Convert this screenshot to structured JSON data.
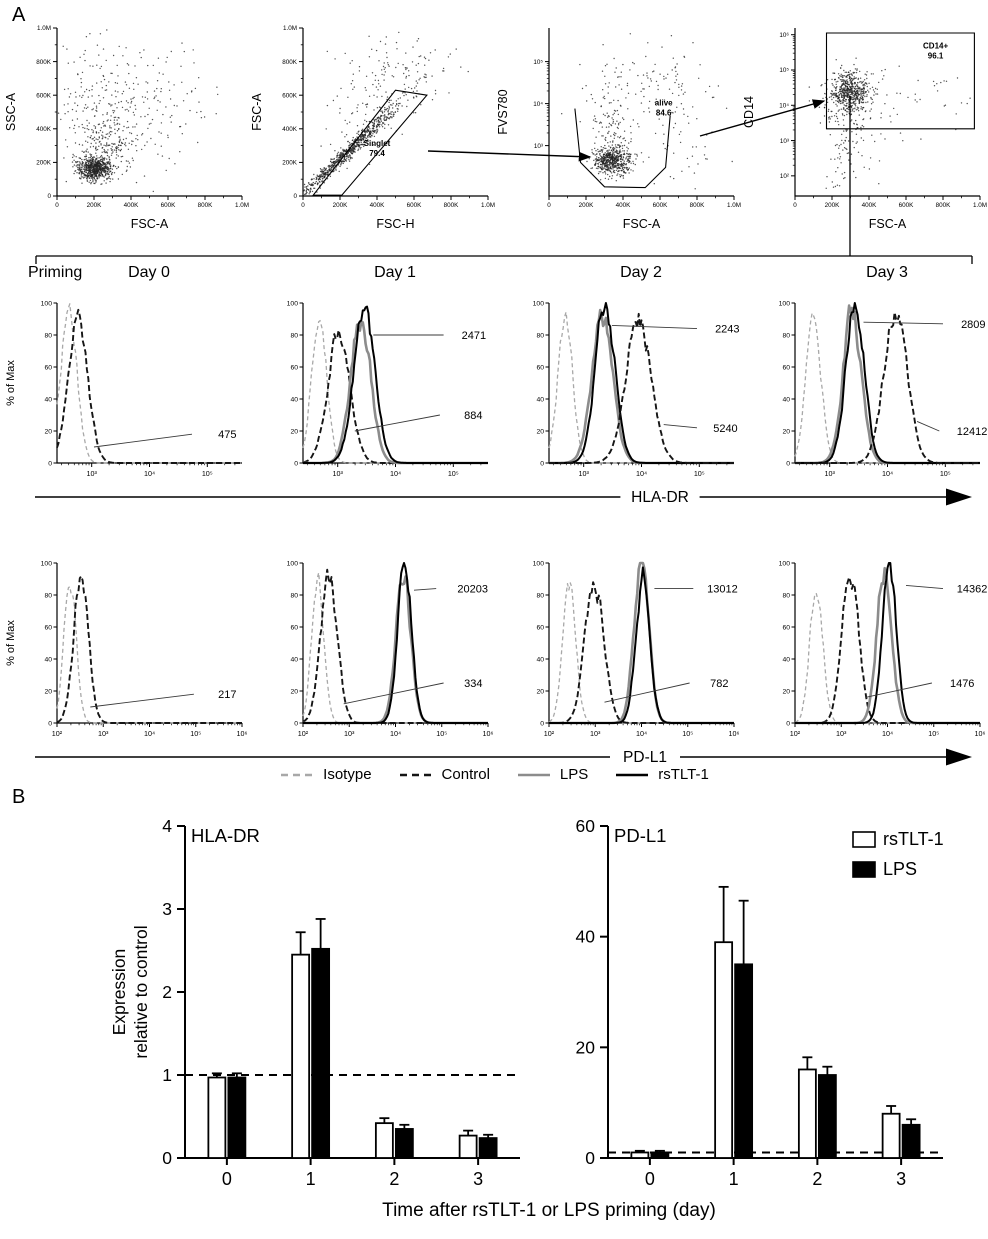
{
  "panelA": {
    "label": "A",
    "priming_label": "Priming",
    "day_columns": [
      "Day 0",
      "Day 1",
      "Day 2",
      "Day 3"
    ],
    "hist_ylabel": "% of Max",
    "hist_yticks": [
      "0",
      "20",
      "40",
      "60",
      "80",
      "100"
    ],
    "legend": [
      {
        "series": "isotype",
        "label": "Isotype"
      },
      {
        "series": "control",
        "label": "Control"
      },
      {
        "series": "lps",
        "label": "LPS"
      },
      {
        "series": "rstlt1",
        "label": "rsTLT-1"
      }
    ],
    "series_styles": {
      "isotype": {
        "color": "#a8a8a8",
        "dash": "4 3",
        "width": 1.3
      },
      "control": {
        "color": "#151515",
        "dash": "6 3",
        "width": 1.9
      },
      "lps": {
        "color": "#8c8c8c",
        "dash": "",
        "width": 2.6
      },
      "rstlt1": {
        "color": "#000000",
        "dash": "",
        "width": 2.0
      }
    }
  },
  "panelB": {
    "label": "B",
    "ylabel_lines": [
      "Expression",
      "relative to control"
    ],
    "xlabel": "Time after rsTLT-1 or LPS priming (day)",
    "legend": [
      {
        "name": "rsTLT-1",
        "fill": "#ffffff"
      },
      {
        "name": "LPS",
        "fill": "#000000"
      }
    ]
  },
  "tick_sets": {
    "lin6": [
      {
        "label": "0",
        "pos": 0
      },
      {
        "label": "200K",
        "pos": 0.2
      },
      {
        "label": "400K",
        "pos": 0.4
      },
      {
        "label": "600K",
        "pos": 0.6
      },
      {
        "label": "800K",
        "pos": 0.8
      },
      {
        "label": "1.0M",
        "pos": 1
      }
    ],
    "log35": [
      {
        "label": "10³",
        "pos": 0.3
      },
      {
        "label": "10⁴",
        "pos": 0.55
      },
      {
        "label": "10⁵",
        "pos": 0.8
      }
    ],
    "log26": [
      {
        "label": "10²",
        "pos": 0.12
      },
      {
        "label": "10³",
        "pos": 0.33
      },
      {
        "label": "10⁴",
        "pos": 0.54
      },
      {
        "label": "10⁵",
        "pos": 0.75
      },
      {
        "label": "10⁶",
        "pos": 0.96
      }
    ]
  },
  "chart_data": [
    {
      "id": "gating-1",
      "type": "scatter",
      "xlabel": "FSC-A",
      "ylabel": "SSC-A",
      "xticks": "lin6",
      "yticks": "lin6",
      "clusters": [
        {
          "cx": 0.2,
          "cy": 0.16,
          "sx": 0.045,
          "sy": 0.032,
          "n": 650
        },
        {
          "cx": 0.26,
          "cy": 0.3,
          "sx": 0.09,
          "sy": 0.1,
          "n": 230
        },
        {
          "cx": 0.42,
          "cy": 0.52,
          "sx": 0.2,
          "sy": 0.2,
          "n": 210
        },
        {
          "cx": 0.18,
          "cy": 0.62,
          "sx": 0.1,
          "sy": 0.2,
          "n": 70
        }
      ],
      "gate": null
    },
    {
      "id": "gating-2",
      "type": "scatter",
      "xlabel": "FSC-H",
      "ylabel": "FSC-A",
      "xticks": "lin6",
      "yticks": "lin6",
      "clusters": [
        {
          "cx": 0.24,
          "cy": 0.26,
          "sx": 0.14,
          "sy": 0.145,
          "rho": 0.985,
          "n": 780
        },
        {
          "cx": 0.4,
          "cy": 0.55,
          "sx": 0.14,
          "sy": 0.16,
          "rho": 0.5,
          "n": 120
        },
        {
          "cx": 0.52,
          "cy": 0.78,
          "sx": 0.18,
          "sy": 0.1,
          "n": 70
        }
      ],
      "gate": {
        "label": "Singlet",
        "value": "79.4",
        "shape": [
          [
            0.055,
            0.005
          ],
          [
            0.5,
            0.63
          ],
          [
            0.67,
            0.6
          ],
          [
            0.21,
            0.005
          ]
        ],
        "label_xy": [
          0.4,
          0.28
        ]
      }
    },
    {
      "id": "gating-3",
      "type": "scatter",
      "xlabel": "FSC-A",
      "ylabel": "FVS780",
      "xticks": "lin6",
      "yticks": "log35",
      "clusters": [
        {
          "cx": 0.34,
          "cy": 0.21,
          "sx": 0.05,
          "sy": 0.045,
          "n": 560
        },
        {
          "cx": 0.34,
          "cy": 0.38,
          "sx": 0.045,
          "sy": 0.1,
          "n": 90
        },
        {
          "cx": 0.47,
          "cy": 0.66,
          "sx": 0.16,
          "sy": 0.13,
          "n": 120
        },
        {
          "cx": 0.72,
          "cy": 0.35,
          "sx": 0.14,
          "sy": 0.18,
          "n": 55
        }
      ],
      "gate": {
        "label": "alive",
        "value": "84.6",
        "open": true,
        "shape": [
          [
            0.14,
            0.52
          ],
          [
            0.17,
            0.2
          ],
          [
            0.3,
            0.055
          ],
          [
            0.52,
            0.05
          ],
          [
            0.63,
            0.17
          ],
          [
            0.655,
            0.48
          ]
        ],
        "label_xy": [
          0.62,
          0.52
        ]
      }
    },
    {
      "id": "gating-4",
      "type": "scatter",
      "xlabel": "FSC-A",
      "ylabel": "CD14",
      "xticks": "lin6",
      "yticks": "log26",
      "clusters": [
        {
          "cx": 0.3,
          "cy": 0.62,
          "sx": 0.05,
          "sy": 0.055,
          "n": 520
        },
        {
          "cx": 0.3,
          "cy": 0.57,
          "sx": 0.09,
          "sy": 0.1,
          "n": 140
        },
        {
          "cx": 0.27,
          "cy": 0.3,
          "sx": 0.06,
          "sy": 0.12,
          "n": 70
        },
        {
          "cx": 0.6,
          "cy": 0.55,
          "sx": 0.2,
          "sy": 0.15,
          "n": 40
        }
      ],
      "gate": {
        "label": "CD14+",
        "value": "96.1",
        "shape": [
          [
            0.17,
            0.4
          ],
          [
            0.97,
            0.4
          ],
          [
            0.97,
            0.97
          ],
          [
            0.17,
            0.97
          ]
        ],
        "label_xy": [
          0.76,
          0.86
        ]
      }
    },
    {
      "id": "hist-hladr",
      "type": "line",
      "marker": "HLA-DR",
      "x_decades": [
        2.4,
        5.6
      ],
      "xticks": [
        {
          "label": "10³",
          "exp": 3
        },
        {
          "label": "10⁴",
          "exp": 4
        },
        {
          "label": "10⁵",
          "exp": 5
        }
      ],
      "plots": [
        {
          "curves": [
            {
              "series": "isotype",
              "peak": 2.6,
              "sigma": 0.14,
              "height": 0.97
            },
            {
              "series": "control",
              "peak": 2.76,
              "sigma": 0.17,
              "height": 0.92
            }
          ],
          "annotations": [
            {
              "value": "475",
              "label_xy": [
                0.97,
                0.18
              ],
              "line": [
                [
                  0.2,
                  0.1
                ],
                [
                  0.73,
                  0.18
                ]
              ]
            }
          ]
        },
        {
          "curves": [
            {
              "series": "isotype",
              "peak": 2.68,
              "sigma": 0.13,
              "height": 0.93
            },
            {
              "series": "control",
              "peak": 3.02,
              "sigma": 0.19,
              "height": 0.82
            },
            {
              "series": "lps",
              "peak": 3.4,
              "sigma": 0.17,
              "height": 0.93
            },
            {
              "series": "rstlt1",
              "peak": 3.46,
              "sigma": 0.18,
              "height": 0.98
            }
          ],
          "annotations": [
            {
              "value": "2471",
              "label_xy": [
                0.99,
                0.8
              ],
              "line": [
                [
                  0.38,
                  0.8
                ],
                [
                  0.76,
                  0.8
                ]
              ]
            },
            {
              "value": "884",
              "label_xy": [
                0.97,
                0.3
              ],
              "line": [
                [
                  0.28,
                  0.2
                ],
                [
                  0.74,
                  0.3
                ]
              ]
            }
          ]
        },
        {
          "curves": [
            {
              "series": "isotype",
              "peak": 2.68,
              "sigma": 0.13,
              "height": 0.9
            },
            {
              "series": "lps",
              "peak": 3.32,
              "sigma": 0.18,
              "height": 0.93
            },
            {
              "series": "rstlt1",
              "peak": 3.37,
              "sigma": 0.17,
              "height": 0.98
            },
            {
              "series": "control",
              "peak": 3.95,
              "sigma": 0.22,
              "height": 0.9
            }
          ],
          "annotations": [
            {
              "value": "2243",
              "label_xy": [
                1.03,
                0.84
              ],
              "line": [
                [
                  0.34,
                  0.86
                ],
                [
                  0.8,
                  0.84
                ]
              ]
            },
            {
              "value": "5240",
              "label_xy": [
                1.02,
                0.22
              ],
              "line": [
                [
                  0.62,
                  0.24
                ],
                [
                  0.8,
                  0.22
                ]
              ]
            }
          ]
        },
        {
          "curves": [
            {
              "series": "isotype",
              "peak": 2.72,
              "sigma": 0.13,
              "height": 0.9
            },
            {
              "series": "lps",
              "peak": 3.39,
              "sigma": 0.16,
              "height": 0.93
            },
            {
              "series": "rstlt1",
              "peak": 3.44,
              "sigma": 0.16,
              "height": 0.98
            },
            {
              "series": "control",
              "peak": 4.14,
              "sigma": 0.2,
              "height": 0.95
            }
          ],
          "annotations": [
            {
              "value": "2809",
              "label_xy": [
                1.03,
                0.87
              ],
              "line": [
                [
                  0.37,
                  0.88
                ],
                [
                  0.8,
                  0.87
                ]
              ]
            },
            {
              "value": "12412",
              "label_xy": [
                1.04,
                0.2
              ],
              "line": [
                [
                  0.66,
                  0.26
                ],
                [
                  0.78,
                  0.2
                ]
              ]
            }
          ]
        }
      ]
    },
    {
      "id": "hist-pdl1",
      "type": "line",
      "marker": "PD-L1",
      "x_decades": [
        2.0,
        6.0
      ],
      "xticks": [
        {
          "label": "10²",
          "exp": 2
        },
        {
          "label": "10³",
          "exp": 3
        },
        {
          "label": "10⁴",
          "exp": 4
        },
        {
          "label": "10⁵",
          "exp": 5
        },
        {
          "label": "10⁶",
          "exp": 6
        }
      ],
      "plots": [
        {
          "curves": [
            {
              "series": "isotype",
              "peak": 2.28,
              "sigma": 0.13,
              "height": 0.93
            },
            {
              "series": "control",
              "peak": 2.52,
              "sigma": 0.16,
              "height": 0.92
            }
          ],
          "annotations": [
            {
              "value": "217",
              "label_xy": [
                0.97,
                0.18
              ],
              "line": [
                [
                  0.18,
                  0.1
                ],
                [
                  0.74,
                  0.18
                ]
              ]
            }
          ]
        },
        {
          "curves": [
            {
              "series": "isotype",
              "peak": 2.32,
              "sigma": 0.13,
              "height": 0.9
            },
            {
              "series": "control",
              "peak": 2.56,
              "sigma": 0.18,
              "height": 0.92
            },
            {
              "series": "lps",
              "peak": 4.17,
              "sigma": 0.16,
              "height": 0.93
            },
            {
              "series": "rstlt1",
              "peak": 4.2,
              "sigma": 0.15,
              "height": 0.98
            }
          ],
          "annotations": [
            {
              "value": "20203",
              "label_xy": [
                1.0,
                0.84
              ],
              "line": [
                [
                  0.6,
                  0.83
                ],
                [
                  0.72,
                  0.84
                ]
              ]
            },
            {
              "value": "334",
              "label_xy": [
                0.97,
                0.25
              ],
              "line": [
                [
                  0.22,
                  0.12
                ],
                [
                  0.76,
                  0.25
                ]
              ]
            }
          ]
        },
        {
          "curves": [
            {
              "series": "isotype",
              "peak": 2.44,
              "sigma": 0.14,
              "height": 0.88
            },
            {
              "series": "control",
              "peak": 2.98,
              "sigma": 0.2,
              "height": 0.9
            },
            {
              "series": "lps",
              "peak": 4.0,
              "sigma": 0.16,
              "height": 0.98
            },
            {
              "series": "rstlt1",
              "peak": 4.03,
              "sigma": 0.15,
              "height": 0.94
            }
          ],
          "annotations": [
            {
              "value": "13012",
              "label_xy": [
                1.02,
                0.84
              ],
              "line": [
                [
                  0.57,
                  0.84
                ],
                [
                  0.78,
                  0.84
                ]
              ]
            },
            {
              "value": "782",
              "label_xy": [
                0.97,
                0.25
              ],
              "line": [
                [
                  0.3,
                  0.13
                ],
                [
                  0.76,
                  0.25
                ]
              ]
            }
          ]
        },
        {
          "curves": [
            {
              "series": "isotype",
              "peak": 2.46,
              "sigma": 0.14,
              "height": 0.86
            },
            {
              "series": "control",
              "peak": 3.2,
              "sigma": 0.18,
              "height": 0.95
            },
            {
              "series": "lps",
              "peak": 3.93,
              "sigma": 0.16,
              "height": 0.98
            },
            {
              "series": "rstlt1",
              "peak": 4.04,
              "sigma": 0.15,
              "height": 0.99
            }
          ],
          "annotations": [
            {
              "value": "14362",
              "label_xy": [
                1.04,
                0.84
              ],
              "line": [
                [
                  0.6,
                  0.86
                ],
                [
                  0.8,
                  0.84
                ]
              ]
            },
            {
              "value": "1476",
              "label_xy": [
                0.97,
                0.25
              ],
              "line": [
                [
                  0.38,
                  0.16
                ],
                [
                  0.74,
                  0.25
                ]
              ]
            }
          ]
        }
      ]
    },
    {
      "id": "bar-hladr",
      "type": "bar",
      "title": "HLA-DR",
      "categories": [
        "0",
        "1",
        "2",
        "3"
      ],
      "ylim": [
        0,
        4
      ],
      "yticks": [
        0,
        1,
        2,
        3,
        4
      ],
      "baseline": 1,
      "series": [
        {
          "name": "rsTLT-1",
          "fill": "#ffffff",
          "values": [
            0.97,
            2.45,
            0.42,
            0.27
          ],
          "errors": [
            0.05,
            0.27,
            0.06,
            0.06
          ]
        },
        {
          "name": "LPS",
          "fill": "#000000",
          "values": [
            0.97,
            2.52,
            0.35,
            0.24
          ],
          "errors": [
            0.05,
            0.36,
            0.05,
            0.04
          ]
        }
      ]
    },
    {
      "id": "bar-pdl1",
      "type": "bar",
      "title": "PD-L1",
      "categories": [
        "0",
        "1",
        "2",
        "3"
      ],
      "ylim": [
        0,
        60
      ],
      "yticks": [
        0,
        20,
        40,
        60
      ],
      "baseline": 1,
      "series": [
        {
          "name": "rsTLT-1",
          "fill": "#ffffff",
          "values": [
            1.0,
            39,
            16,
            8
          ],
          "errors": [
            0.3,
            10,
            2.2,
            1.4
          ]
        },
        {
          "name": "LPS",
          "fill": "#000000",
          "values": [
            1.0,
            35,
            15,
            6
          ],
          "errors": [
            0.3,
            11.5,
            1.5,
            1.0
          ]
        }
      ]
    }
  ]
}
